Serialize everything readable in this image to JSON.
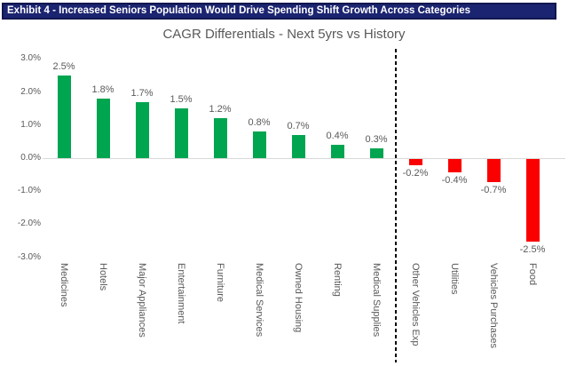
{
  "header": {
    "text": "Exhibit 4 - Increased Seniors Population Would Drive Spending Shift Growth Across Categories",
    "background_color": "#1B2470",
    "text_color": "#FFFFFF"
  },
  "chart_data": {
    "type": "bar",
    "title": "CAGR Differentials - Next 5yrs vs History",
    "categories": [
      "Medicines",
      "Hotels",
      "Major Appliances",
      "Entertainment",
      "Furniture",
      "Medical Services",
      "Owned Housing",
      "Renting",
      "Medical Supplies",
      "Other Vehicles Exp",
      "Utilities",
      "Vehicles Purchases",
      "Food"
    ],
    "values": [
      2.5,
      1.8,
      1.7,
      1.5,
      1.2,
      0.8,
      0.7,
      0.4,
      0.3,
      -0.2,
      -0.4,
      -0.7,
      -2.5
    ],
    "value_labels": [
      "2.5%",
      "1.8%",
      "1.7%",
      "1.5%",
      "1.2%",
      "0.8%",
      "0.7%",
      "0.4%",
      "0.3%",
      "-0.2%",
      "-0.4%",
      "-0.7%",
      "-2.5%"
    ],
    "xlabel": "",
    "ylabel": "",
    "ylim": [
      -3.0,
      3.0
    ],
    "ytick_labels": [
      "3.0%",
      "2.0%",
      "1.0%",
      "0.0%",
      "-1.0%",
      "-2.0%",
      "-3.0%"
    ],
    "ytick_values": [
      3.0,
      2.0,
      1.0,
      0.0,
      -1.0,
      -2.0,
      -3.0
    ],
    "grid": false,
    "legend": false,
    "positive_color": "#00A550",
    "negative_color": "#FB0000",
    "label_color": "#595959",
    "zero_line_color": "#D9D9D9",
    "divider_after_index": 8,
    "divider_style": "black dashed vertical line separating positive and negative categories"
  }
}
